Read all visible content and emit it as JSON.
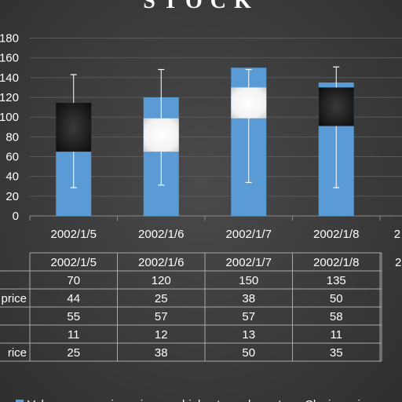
{
  "chart_data": {
    "type": "bar",
    "title": "STOCK",
    "categories": [
      "2002/1/5",
      "2002/1/6",
      "2002/1/7",
      "2002/1/8"
    ],
    "ylim": [
      0,
      180
    ],
    "yticks": [
      0,
      20,
      40,
      60,
      80,
      100,
      120,
      140,
      160,
      180
    ],
    "grid": true,
    "series": [
      {
        "name": "Volume",
        "values": [
          70,
          120,
          150,
          135
        ]
      },
      {
        "name": "opening price",
        "values": [
          44,
          25,
          38,
          50
        ]
      },
      {
        "name": "highest",
        "values": [
          55,
          57,
          57,
          58
        ]
      },
      {
        "name": "lowest",
        "values": [
          11,
          12,
          13,
          11
        ]
      },
      {
        "name": "Closing price",
        "values": [
          25,
          38,
          50,
          35
        ]
      }
    ],
    "table_row_labels": [
      "",
      "price",
      "",
      "",
      "rice"
    ],
    "legend_labels": [
      "Volume",
      "opening price",
      "highest",
      "lowest",
      "Closing price"
    ],
    "legend_placement": "bottom",
    "colors": {
      "volume": "#5b9bd5",
      "up_box": "#ffffff",
      "down_box": "#1b1b1b",
      "text": "#ffffff",
      "grid": "#5a5a5a"
    }
  }
}
